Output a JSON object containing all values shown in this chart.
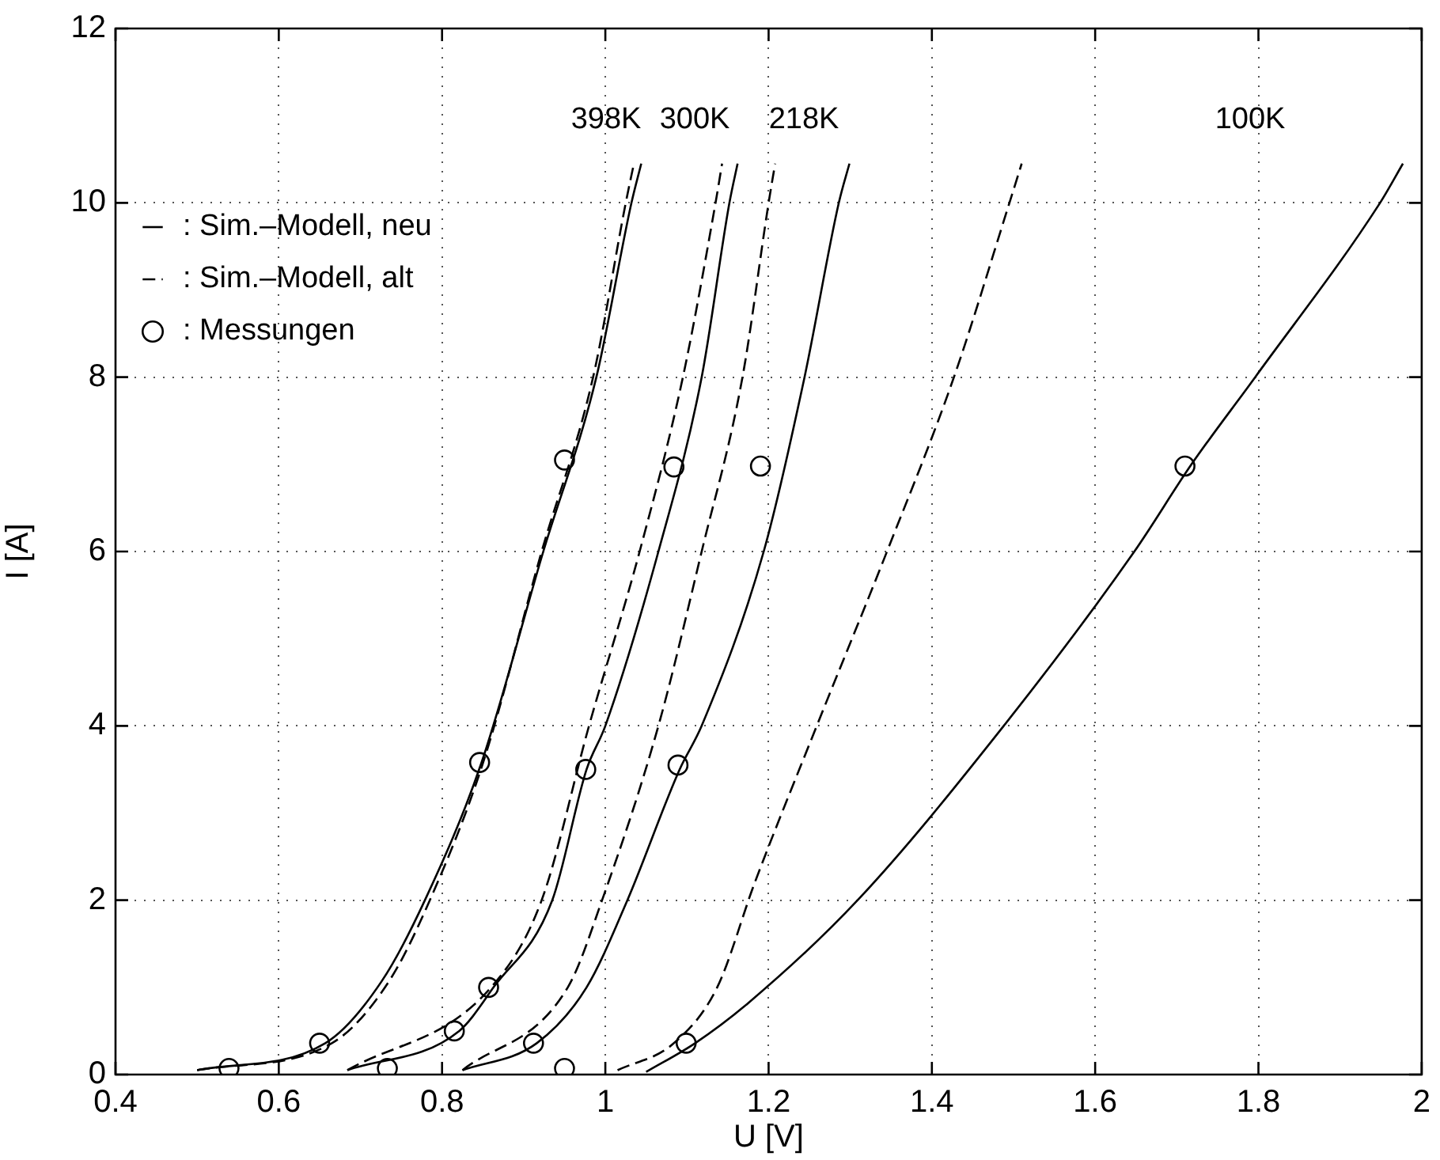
{
  "chart_data": {
    "type": "line",
    "xlabel": "U [V]",
    "ylabel": "I [A]",
    "xlim": [
      0.4,
      2
    ],
    "ylim": [
      0,
      12
    ],
    "xticks": [
      0.4,
      0.6,
      0.8,
      1,
      1.2,
      1.4,
      1.6,
      1.8,
      2
    ],
    "yticks": [
      0,
      2,
      4,
      6,
      8,
      10,
      12
    ],
    "grid": true,
    "legend": "top left",
    "series": [
      {
        "name": ": Sim.–Modell, neu",
        "line_style": "solid",
        "color": "#000000",
        "x": [
          0.5,
          0.657,
          0.726,
          0.779,
          0.848,
          0.924,
          0.989,
          1.032,
          1.044
        ],
        "values": [
          0.05,
          0.36,
          1.07,
          2,
          3.57,
          6,
          8,
          10,
          10.45
        ]
      },
      {
        "name": ": Sim.–Modell, alt",
        "line_style": "dashed",
        "color": "#000000",
        "x": [
          0.5,
          0.665,
          0.735,
          0.785,
          0.85,
          0.922,
          0.985,
          1.025,
          1.035
        ],
        "values": [
          0.05,
          0.36,
          1.07,
          2,
          3.57,
          6,
          8,
          10,
          10.45
        ]
      },
      {
        "line_style": "solid",
        "color": "#000000",
        "x": [
          0.684,
          0.821,
          0.863,
          0.935,
          0.977,
          1.0,
          1.065,
          1.118,
          1.152,
          1.162
        ],
        "values": [
          0.05,
          0.5,
          1,
          2,
          3.5,
          4,
          6,
          8,
          10,
          10.45
        ]
      },
      {
        "line_style": "dashed",
        "color": "#000000",
        "x": [
          0.684,
          0.86,
          0.922,
          0.98,
          1.042,
          1.095,
          1.135,
          1.143
        ],
        "values": [
          0.05,
          1,
          2,
          4,
          6,
          8,
          10,
          10.45
        ]
      },
      {
        "line_style": "solid",
        "color": "#000000",
        "x": [
          0.825,
          0.916,
          0.977,
          1.027,
          1.091,
          1.118,
          1.194,
          1.244,
          1.286,
          1.299
        ],
        "values": [
          0.05,
          0.36,
          1,
          2,
          3.5,
          4,
          6,
          8,
          10,
          10.45
        ]
      },
      {
        "line_style": "dashed",
        "color": "#000000",
        "x": [
          0.825,
          0.954,
          0.996,
          1.065,
          1.118,
          1.168,
          1.2,
          1.208
        ],
        "values": [
          0.05,
          1,
          2,
          4,
          6,
          8,
          10,
          10.45
        ]
      },
      {
        "line_style": "solid",
        "color": "#000000",
        "x": [
          1.05,
          1.11,
          1.175,
          1.309,
          1.488,
          1.648,
          1.718,
          1.796,
          1.949,
          1.977
        ],
        "values": [
          0.03,
          0.36,
          0.82,
          2,
          4,
          6,
          7,
          8,
          10,
          10.45
        ]
      },
      {
        "line_style": "dashed",
        "color": "#000000",
        "x": [
          1.015,
          1.084,
          1.137,
          1.183,
          1.259,
          1.345,
          1.427,
          1.495,
          1.51
        ],
        "values": [
          0.05,
          0.36,
          1,
          2.2,
          4,
          6,
          8,
          10,
          10.45
        ]
      },
      {
        "name": ": Messungen",
        "type": "scatter",
        "marker": "circle",
        "color": "#000000",
        "x": [
          0.539,
          0.65,
          0.846,
          0.95,
          0.733,
          0.815,
          0.857,
          0.976,
          1.084,
          0.912,
          0.95,
          1.089,
          1.19,
          1.099,
          1.71
        ],
        "values": [
          0.07,
          0.36,
          3.58,
          7.05,
          0.07,
          0.5,
          1.0,
          3.5,
          6.97,
          0.36,
          0.07,
          3.55,
          6.98,
          0.36,
          6.98
        ]
      }
    ],
    "annotations": [
      "398K",
      "300K",
      "218K",
      "100K"
    ]
  }
}
